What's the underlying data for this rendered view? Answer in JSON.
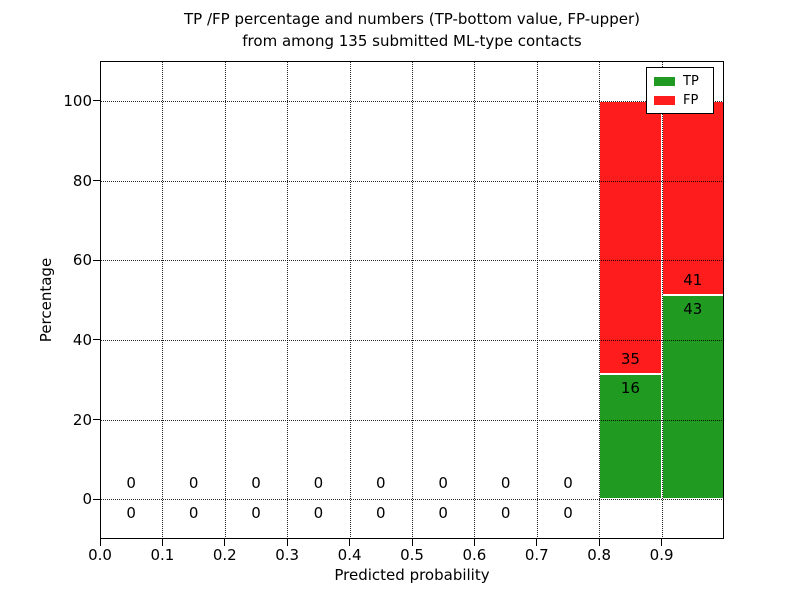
{
  "chart_data": {
    "type": "bar",
    "stacked": true,
    "title": [
      "TP /FP percentage and numbers (TP-bottom value, FP-upper)",
      "from among 135 submitted ML-type contacts"
    ],
    "xlabel": "Predicted probability",
    "ylabel": "Percentage",
    "total_submitted_contacts": 135,
    "xlim": [
      0.0,
      1.0
    ],
    "ylim": [
      -10,
      110
    ],
    "x_tick_labels": [
      "0.0",
      "0.1",
      "0.2",
      "0.3",
      "0.4",
      "0.5",
      "0.6",
      "0.7",
      "0.8",
      "0.9"
    ],
    "x_tick_values": [
      0.0,
      0.1,
      0.2,
      0.3,
      0.4,
      0.5,
      0.6,
      0.7,
      0.8,
      0.9
    ],
    "y_tick_values": [
      0,
      20,
      40,
      60,
      80,
      100
    ],
    "grid": {
      "visible": true,
      "style": "dotted",
      "color": "#000000",
      "above_bars": true
    },
    "legend": {
      "position": "upper right",
      "entries": [
        {
          "label": "TP",
          "color": "#219a21"
        },
        {
          "label": "FP",
          "color": "#fe1c1c"
        }
      ]
    },
    "bins": [
      {
        "x_start": 0.0,
        "x_end": 0.1,
        "tp_count": 0,
        "fp_count": 0
      },
      {
        "x_start": 0.1,
        "x_end": 0.2,
        "tp_count": 0,
        "fp_count": 0
      },
      {
        "x_start": 0.2,
        "x_end": 0.3,
        "tp_count": 0,
        "fp_count": 0
      },
      {
        "x_start": 0.3,
        "x_end": 0.4,
        "tp_count": 0,
        "fp_count": 0
      },
      {
        "x_start": 0.4,
        "x_end": 0.5,
        "tp_count": 0,
        "fp_count": 0
      },
      {
        "x_start": 0.5,
        "x_end": 0.6,
        "tp_count": 0,
        "fp_count": 0
      },
      {
        "x_start": 0.6,
        "x_end": 0.7,
        "tp_count": 0,
        "fp_count": 0
      },
      {
        "x_start": 0.7,
        "x_end": 0.8,
        "tp_count": 0,
        "fp_count": 0
      },
      {
        "x_start": 0.8,
        "x_end": 0.9,
        "tp_count": 16,
        "fp_count": 35,
        "tp_pct": 31.4,
        "fp_pct": 68.6
      },
      {
        "x_start": 0.9,
        "x_end": 1.0,
        "tp_count": 43,
        "fp_count": 41,
        "tp_pct": 51.2,
        "fp_pct": 48.8
      }
    ],
    "colors": {
      "tp": "#219a21",
      "fp": "#fe1c1c",
      "background": "#ffffff",
      "text": "#000000"
    }
  }
}
